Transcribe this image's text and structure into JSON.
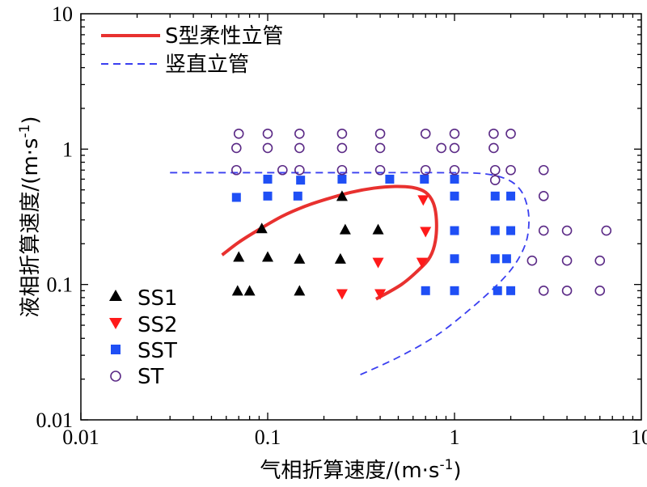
{
  "chart_data": {
    "type": "scatter",
    "xlabel": "气相折算速度/(m·s",
    "xlabel_sup": "-1",
    "xlabel_close": ")",
    "ylabel": "液相折算速度/(m·s",
    "ylabel_sup": "-1",
    "ylabel_close": ")",
    "xscale": "log",
    "yscale": "log",
    "xlim": [
      0.01,
      10
    ],
    "ylim": [
      0.01,
      10
    ],
    "x_ticks": [
      {
        "value": 0.01,
        "label": "0.01"
      },
      {
        "value": 0.1,
        "label": "0.1"
      },
      {
        "value": 1,
        "label": "1"
      },
      {
        "value": 10,
        "label": "10"
      }
    ],
    "y_ticks": [
      {
        "value": 0.01,
        "label": "0.01"
      },
      {
        "value": 0.1,
        "label": "0.1"
      },
      {
        "value": 1,
        "label": "1"
      },
      {
        "value": 10,
        "label": "10"
      }
    ],
    "grid": false,
    "lines": [
      {
        "name": "S型柔性立管",
        "color": "#e8312f",
        "style": "solid",
        "points": [
          [
            0.057,
            0.165
          ],
          [
            0.07,
            0.205
          ],
          [
            0.09,
            0.255
          ],
          [
            0.12,
            0.32
          ],
          [
            0.16,
            0.38
          ],
          [
            0.21,
            0.43
          ],
          [
            0.28,
            0.48
          ],
          [
            0.37,
            0.515
          ],
          [
            0.48,
            0.53
          ],
          [
            0.6,
            0.52
          ],
          [
            0.7,
            0.48
          ],
          [
            0.77,
            0.4
          ],
          [
            0.8,
            0.3
          ],
          [
            0.79,
            0.21
          ],
          [
            0.74,
            0.16
          ],
          [
            0.65,
            0.13
          ],
          [
            0.52,
            0.1
          ],
          [
            0.38,
            0.078
          ]
        ]
      },
      {
        "name": "竖直立管",
        "color": "#3a3ff0",
        "style": "dashed",
        "points": [
          [
            0.03,
            0.67
          ],
          [
            0.1,
            0.67
          ],
          [
            0.3,
            0.67
          ],
          [
            0.8,
            0.67
          ],
          [
            1.4,
            0.66
          ],
          [
            1.9,
            0.6
          ],
          [
            2.25,
            0.5
          ],
          [
            2.45,
            0.38
          ],
          [
            2.5,
            0.28
          ],
          [
            2.4,
            0.2
          ],
          [
            2.1,
            0.14
          ],
          [
            1.7,
            0.1
          ],
          [
            1.2,
            0.065
          ],
          [
            0.8,
            0.042
          ],
          [
            0.5,
            0.029
          ],
          [
            0.3,
            0.021
          ]
        ]
      }
    ],
    "series": [
      {
        "name": "SS1",
        "marker": "triangle-up",
        "color": "#000000",
        "points": [
          [
            0.069,
            0.09
          ],
          [
            0.08,
            0.09
          ],
          [
            0.148,
            0.09
          ],
          [
            0.07,
            0.16
          ],
          [
            0.1,
            0.16
          ],
          [
            0.148,
            0.155
          ],
          [
            0.245,
            0.155
          ],
          [
            0.093,
            0.26
          ],
          [
            0.26,
            0.255
          ],
          [
            0.39,
            0.255
          ],
          [
            0.25,
            0.45
          ]
        ]
      },
      {
        "name": "SS2",
        "marker": "triangle-down",
        "color": "#ff1a1a",
        "points": [
          [
            0.25,
            0.085
          ],
          [
            0.4,
            0.085
          ],
          [
            0.39,
            0.145
          ],
          [
            0.67,
            0.145
          ],
          [
            0.7,
            0.245
          ],
          [
            0.68,
            0.42
          ]
        ]
      },
      {
        "name": "SST",
        "marker": "square",
        "color": "#1f4ff5",
        "points": [
          [
            0.068,
            0.44
          ],
          [
            0.1,
            0.45
          ],
          [
            0.145,
            0.45
          ],
          [
            0.1,
            0.6
          ],
          [
            0.15,
            0.59
          ],
          [
            0.25,
            0.6
          ],
          [
            0.45,
            0.6
          ],
          [
            0.69,
            0.6
          ],
          [
            1.0,
            0.6
          ],
          [
            1.0,
            0.45
          ],
          [
            1.65,
            0.45
          ],
          [
            2.0,
            0.45
          ],
          [
            1.0,
            0.25
          ],
          [
            1.65,
            0.25
          ],
          [
            2.0,
            0.25
          ],
          [
            1.0,
            0.155
          ],
          [
            1.65,
            0.155
          ],
          [
            1.9,
            0.155
          ],
          [
            0.7,
            0.09
          ],
          [
            1.0,
            0.09
          ],
          [
            1.7,
            0.09
          ],
          [
            2.0,
            0.09
          ]
        ]
      },
      {
        "name": "ST",
        "marker": "circle-open",
        "color": "#5b2a86",
        "points": [
          [
            0.07,
            1.3
          ],
          [
            0.1,
            1.3
          ],
          [
            0.148,
            1.3
          ],
          [
            0.25,
            1.3
          ],
          [
            0.4,
            1.3
          ],
          [
            0.7,
            1.3
          ],
          [
            1.0,
            1.3
          ],
          [
            1.62,
            1.3
          ],
          [
            2.0,
            1.3
          ],
          [
            0.068,
            1.02
          ],
          [
            0.1,
            1.02
          ],
          [
            0.148,
            1.02
          ],
          [
            0.25,
            1.02
          ],
          [
            0.4,
            1.02
          ],
          [
            0.85,
            1.02
          ],
          [
            1.0,
            1.02
          ],
          [
            1.62,
            1.02
          ],
          [
            0.068,
            0.7
          ],
          [
            0.12,
            0.7
          ],
          [
            0.148,
            0.7
          ],
          [
            0.25,
            0.7
          ],
          [
            0.4,
            0.7
          ],
          [
            0.7,
            0.7
          ],
          [
            1.0,
            0.7
          ],
          [
            1.65,
            0.7
          ],
          [
            2.0,
            0.7
          ],
          [
            3.0,
            0.7
          ],
          [
            1.65,
            0.59
          ],
          [
            3.0,
            0.45
          ],
          [
            3.0,
            0.25
          ],
          [
            4.0,
            0.25
          ],
          [
            6.5,
            0.25
          ],
          [
            2.6,
            0.15
          ],
          [
            4.0,
            0.15
          ],
          [
            6.0,
            0.15
          ],
          [
            3.0,
            0.09
          ],
          [
            4.0,
            0.09
          ],
          [
            6.0,
            0.09
          ]
        ]
      }
    ],
    "legend_top": {
      "placement": "top-left",
      "entries": [
        "S型柔性立管",
        "竖直立管"
      ]
    },
    "legend_markers": {
      "placement": "bottom-left",
      "entries": [
        "SS1",
        "SS2",
        "SST",
        "ST"
      ]
    }
  }
}
